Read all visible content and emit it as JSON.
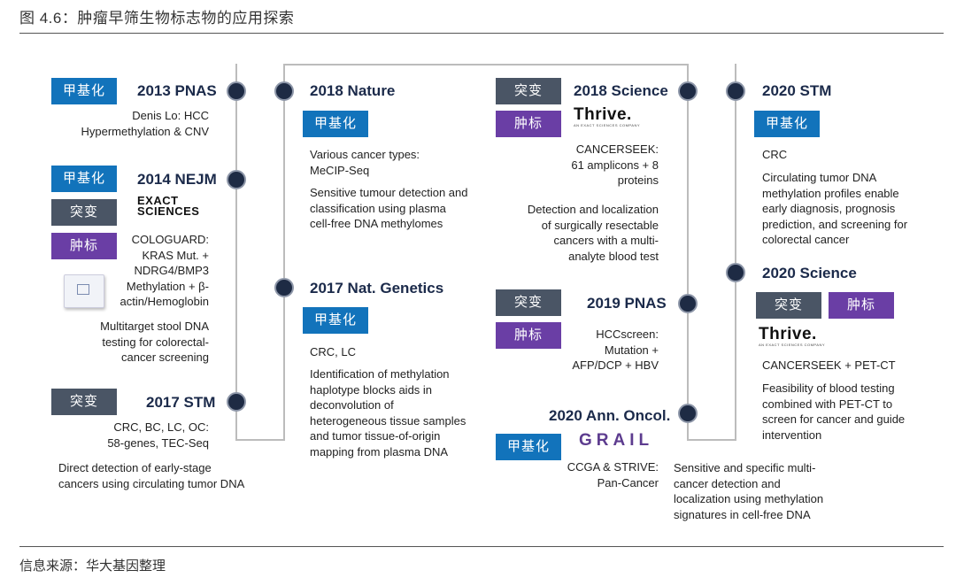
{
  "figure_title": "图 4.6：肿瘤早筛生物标志物的应用探索",
  "source": "信息来源：华大基因整理",
  "tags": {
    "methylation": "甲基化",
    "mutation": "突变",
    "marker": "肿标"
  },
  "events": {
    "pnas2013": {
      "title": "2013 PNAS",
      "text": "Denis Lo: HCC\nHypermethylation & CNV"
    },
    "nejm2014": {
      "title": "2014 NEJM",
      "logo": "EXACT\nSCIENCES",
      "text1": "COLOGUARD:\nKRAS Mut. +\nNDRG4/BMP3\nMethylation + β-\nactin/Hemoglobin",
      "text2": "Multitarget stool DNA\ntesting for colorectal-\ncancer screening"
    },
    "stm2017": {
      "title": "2017 STM",
      "text1": "CRC, BC, LC, OC:\n58-genes, TEC-Seq",
      "text2": "Direct detection of early-stage\ncancers using circulating tumor DNA"
    },
    "nature2018": {
      "title": "2018 Nature",
      "text1": "Various cancer types:\nMeCIP-Seq",
      "text2": "Sensitive tumour detection and\nclassification using plasma\ncell-free DNA methylomes"
    },
    "natgen2017": {
      "title": "2017 Nat. Genetics",
      "text1": "CRC, LC",
      "text2": "Identification of methylation\nhaplotype blocks aids in\ndeconvolution of\nheterogeneous tissue samples\nand tumor tissue-of-origin\nmapping from plasma DNA"
    },
    "science2018": {
      "title": "2018 Science",
      "logo": "Thrive.",
      "logo_sub": "AN EXACT SCIENCES COMPANY",
      "text1": "CANCERSEEK:\n61 amplicons + 8\nproteins",
      "text2": "Detection and localization\nof surgically resectable\ncancers with a multi-\nanalyte blood test"
    },
    "pnas2019": {
      "title": "2019 PNAS",
      "text": "HCCscreen:\nMutation +\nAFP/DCP + HBV"
    },
    "annoncol2020": {
      "title": "2020 Ann. Oncol.",
      "logo": "GRAIL",
      "text1": "CCGA & STRIVE:\nPan-Cancer",
      "text2": "Sensitive and specific multi-\ncancer detection and\nlocalization using methylation\nsignatures in cell-free DNA"
    },
    "stm2020": {
      "title": "2020 STM",
      "text1": "CRC",
      "text2": "Circulating tumor DNA\nmethylation profiles enable\nearly diagnosis, prognosis\nprediction, and screening for\ncolorectal cancer"
    },
    "science2020": {
      "title": "2020 Science",
      "logo": "Thrive.",
      "logo_sub": "AN EXACT SCIENCES COMPANY",
      "text1": "CANCERSEEK + PET-CT",
      "text2": "Feasibility of blood testing\ncombined with PET-CT to\nscreen for cancer and guide\nintervention"
    }
  }
}
